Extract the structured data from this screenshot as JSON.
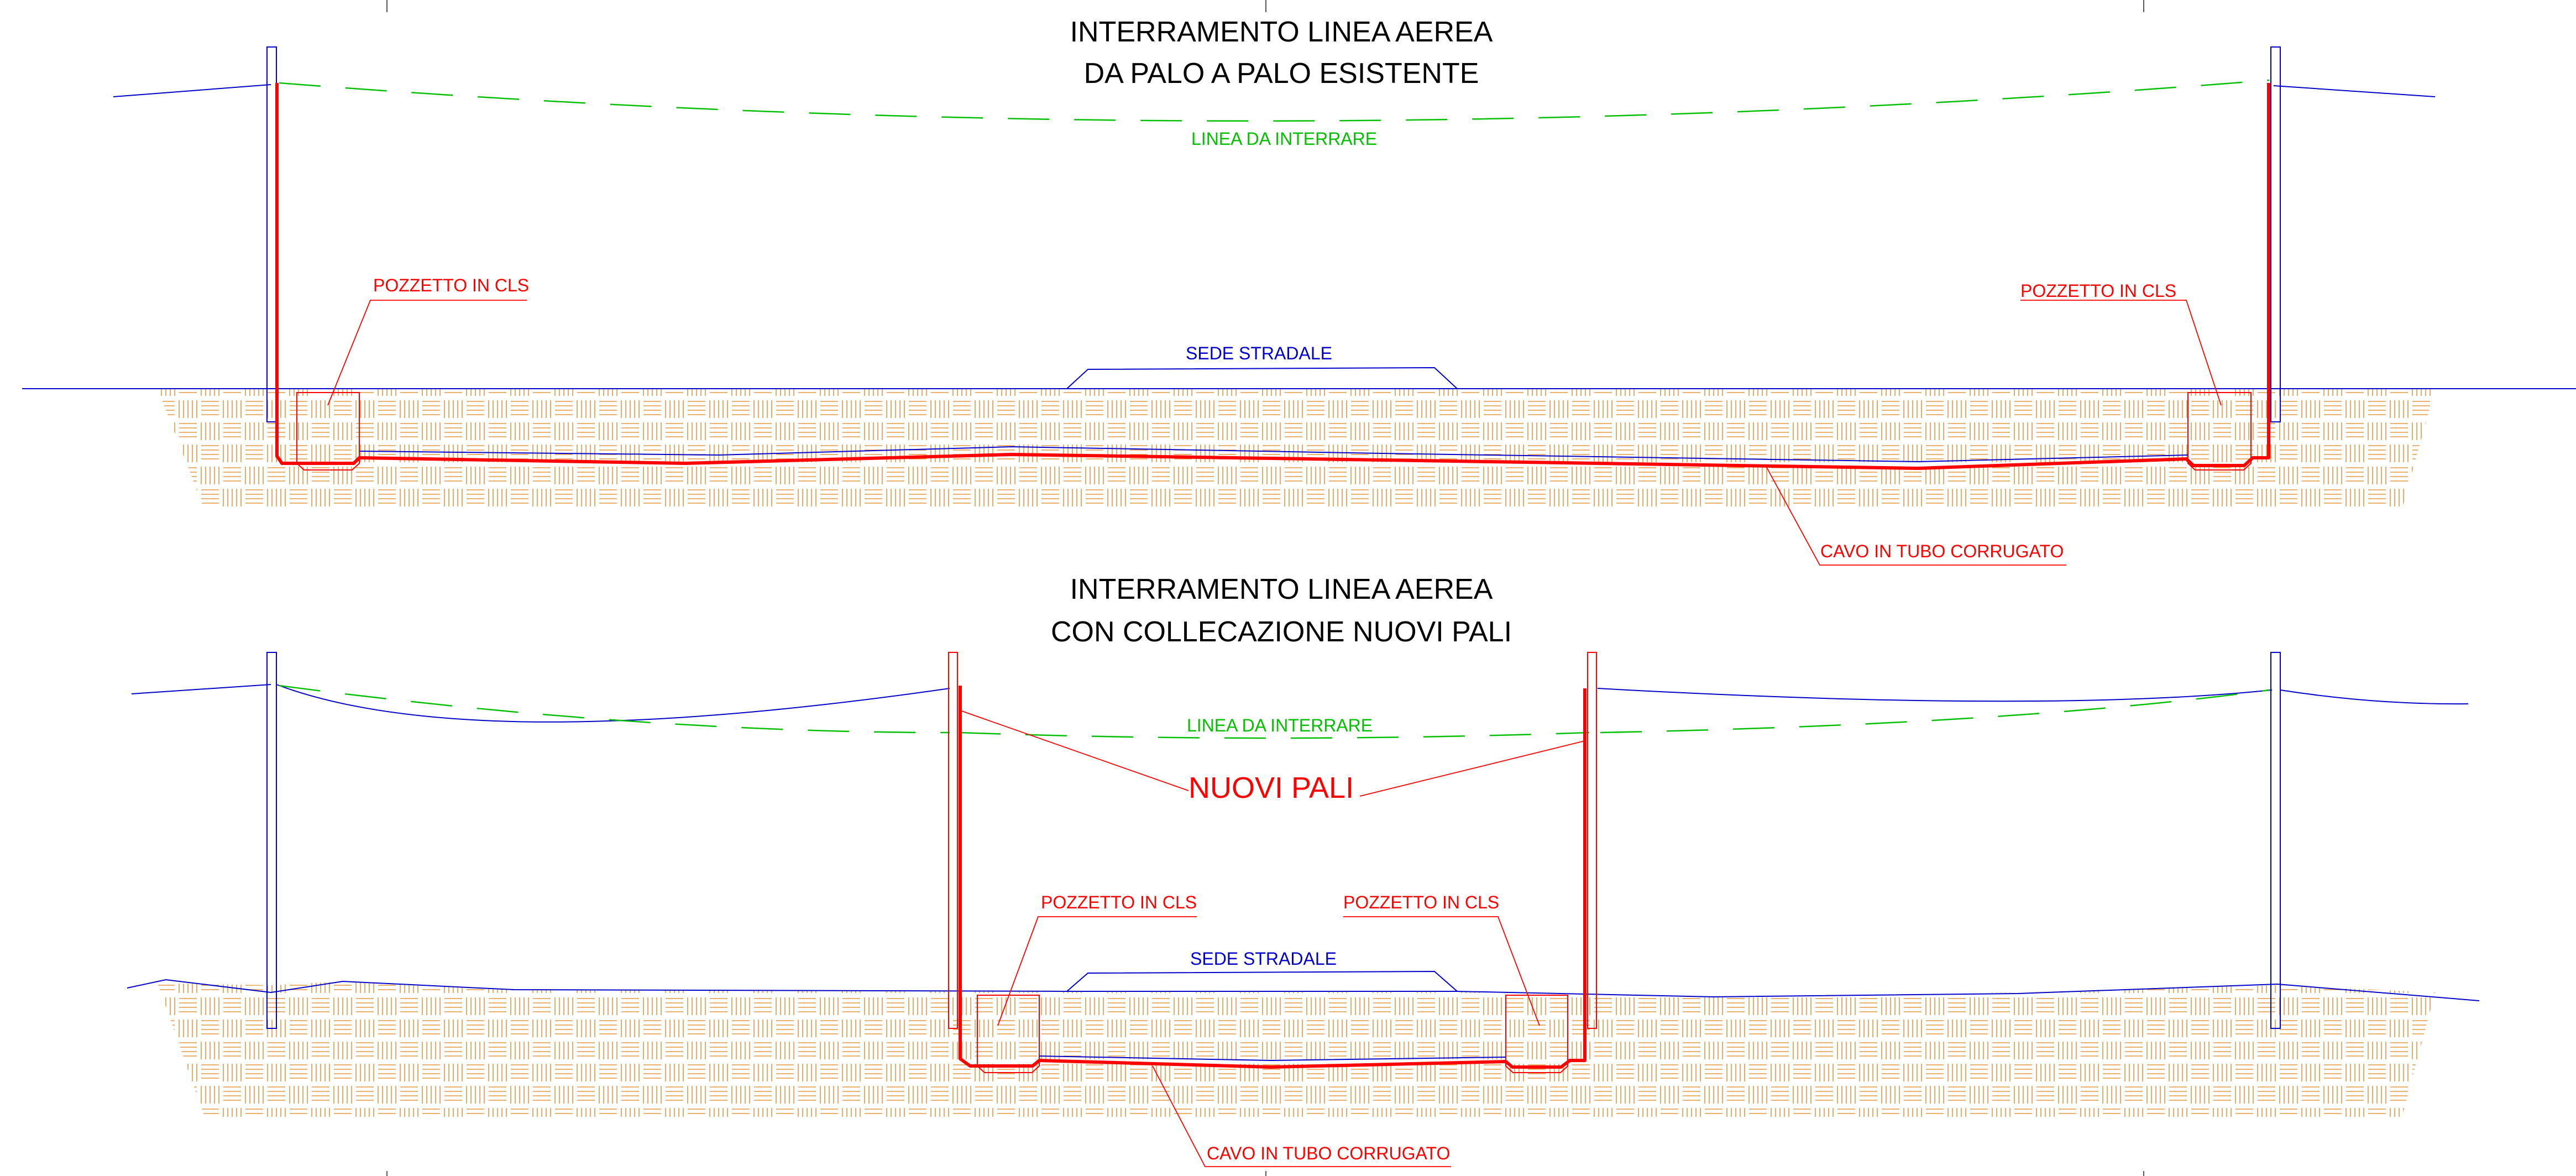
{
  "colors": {
    "cable": "#ff0000",
    "overhead_line": "#0000cc",
    "line_to_bury": "#00c000",
    "soil": "#e6963c",
    "text": "#000000"
  },
  "top": {
    "title_line1": "INTERRAMENTO LINEA AEREA",
    "title_line2": "DA PALO A PALO ESISTENTE",
    "line_label": "LINEA DA INTERRARE",
    "pit_left": "POZZETTO IN CLS",
    "pit_right": "POZZETTO IN CLS",
    "road": "SEDE STRADALE",
    "cable": "CAVO IN TUBO CORRUGATO"
  },
  "bottom": {
    "title_line1": "INTERRAMENTO LINEA AEREA",
    "title_line2": "CON COLLECAZIONE NUOVI PALI",
    "line_label": "LINEA DA INTERRARE",
    "new_poles": "NUOVI PALI",
    "pit_left": "POZZETTO IN CLS",
    "pit_right": "POZZETTO IN CLS",
    "road": "SEDE STRADALE",
    "cable": "CAVO IN TUBO CORRUGATO"
  }
}
